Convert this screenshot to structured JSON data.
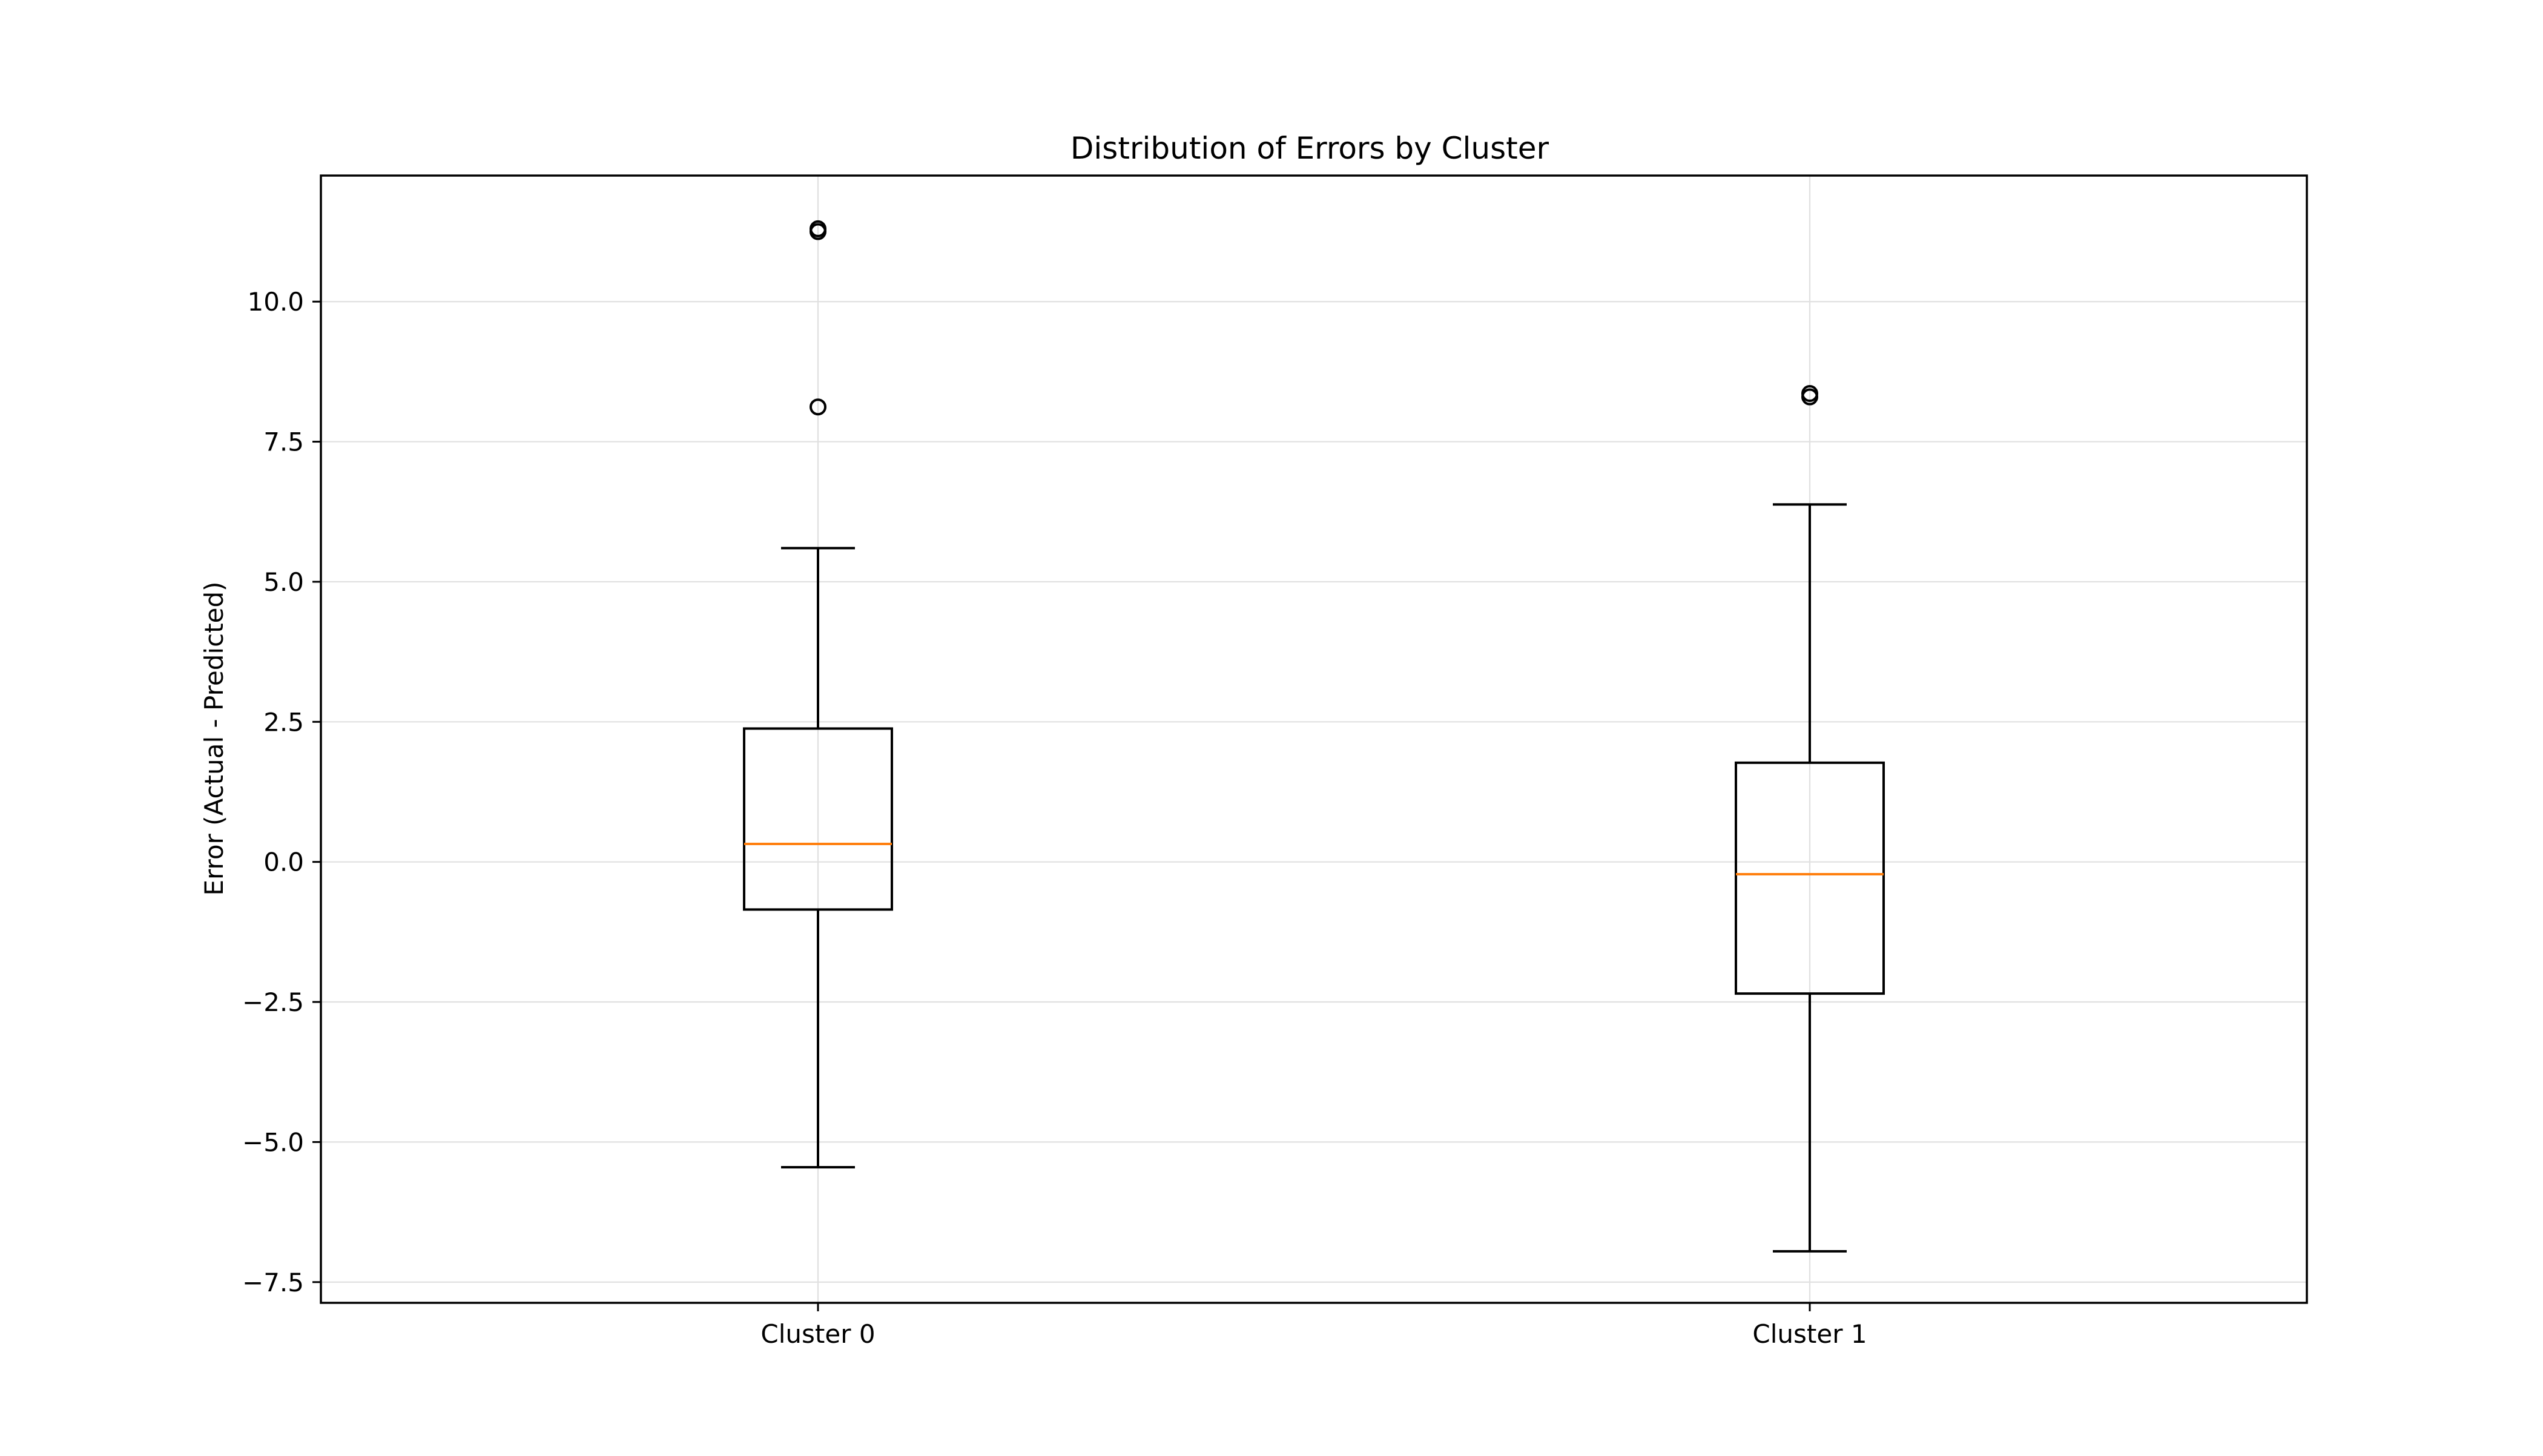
{
  "chart_data": {
    "type": "boxplot",
    "title": "Distribution of Errors by Cluster",
    "xlabel": "",
    "ylabel": "Error (Actual - Predicted)",
    "ylim": [
      -7.87,
      12.25
    ],
    "yticks": [
      -7.5,
      -5.0,
      -2.5,
      0.0,
      2.5,
      5.0,
      7.5,
      10.0
    ],
    "ytick_labels": [
      "−7.5",
      "−5.0",
      "−2.5",
      "0.0",
      "2.5",
      "5.0",
      "7.5",
      "10.0"
    ],
    "grid": true,
    "categories": [
      "Cluster 0",
      "Cluster 1"
    ],
    "boxes": [
      {
        "category": "Cluster 0",
        "whisker_low": -5.45,
        "q1": -0.85,
        "median": 0.32,
        "q3": 2.38,
        "whisker_high": 5.6,
        "outliers": [
          11.25,
          11.3,
          8.12
        ]
      },
      {
        "category": "Cluster 1",
        "whisker_low": -6.95,
        "q1": -2.35,
        "median": -0.22,
        "q3": 1.77,
        "whisker_high": 6.38,
        "outliers": [
          8.3,
          8.36
        ]
      }
    ],
    "colors": {
      "box": "#000000",
      "median": "#ff7f0e",
      "grid": "#e0e0e0"
    }
  }
}
